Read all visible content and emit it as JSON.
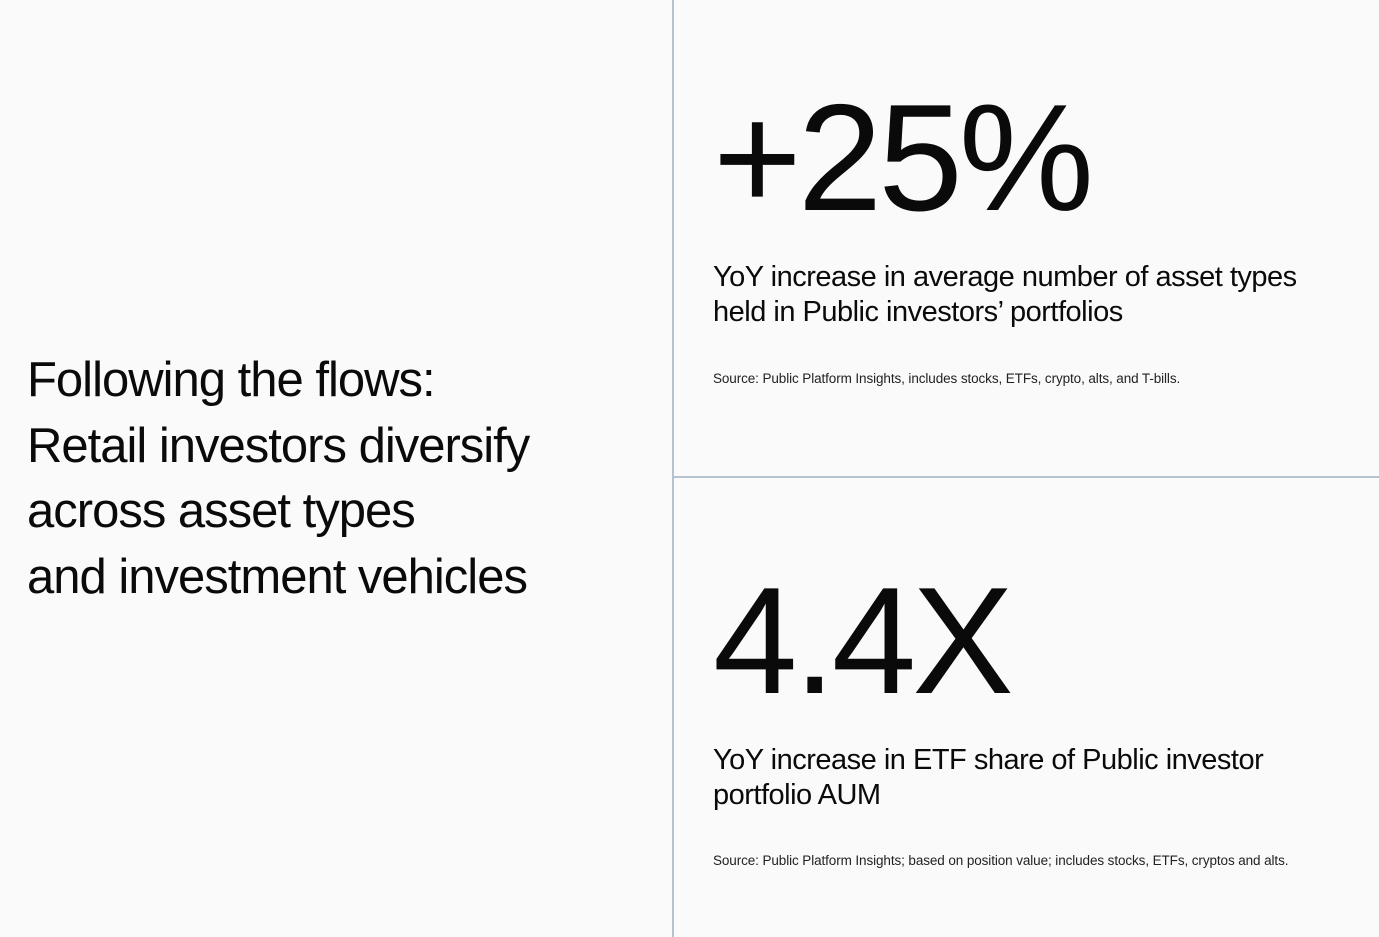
{
  "headline": {
    "lines": [
      "Following the flows:",
      "Retail investors diversify",
      "across asset types",
      "and investment vehicles"
    ]
  },
  "stats": [
    {
      "value": "+25%",
      "description": "YoY increase in average number of asset types held in Public investors’ portfolios",
      "source": "Source: Public Platform Insights, includes stocks, ETFs, crypto, alts, and T-bills."
    },
    {
      "value": "4.4X",
      "description": "YoY increase in ETF share of Public investor portfolio AUM",
      "source": "Source: Public Platform Insights; based on position value; includes stocks, ETFs, cryptos and alts."
    }
  ],
  "colors": {
    "background": "#fafafa",
    "divider": "#b7c2d0",
    "text": "#0a0a0a"
  }
}
